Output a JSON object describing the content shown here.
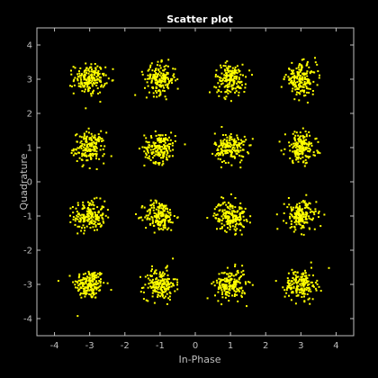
{
  "chart_data": {
    "type": "scatter",
    "title": "Scatter plot",
    "xlabel": "In-Phase",
    "ylabel": "Quadrature",
    "xlim": [
      -4.5,
      4.5
    ],
    "ylim": [
      -4.5,
      4.5
    ],
    "xticks": [
      -4,
      -3,
      -2,
      -1,
      0,
      1,
      2,
      3,
      4
    ],
    "yticks": [
      -4,
      -3,
      -2,
      -1,
      0,
      1,
      2,
      3,
      4
    ],
    "grid": false,
    "background_color": "#000000",
    "axes_color": "#bfbfbf",
    "marker_color": "#ffff00",
    "constellation_centers_x": [
      -3,
      -1,
      1,
      3
    ],
    "constellation_centers_y": [
      -3,
      -1,
      1,
      3
    ],
    "noise_std_estimate": 0.22,
    "points_per_cluster_estimate": 180
  }
}
